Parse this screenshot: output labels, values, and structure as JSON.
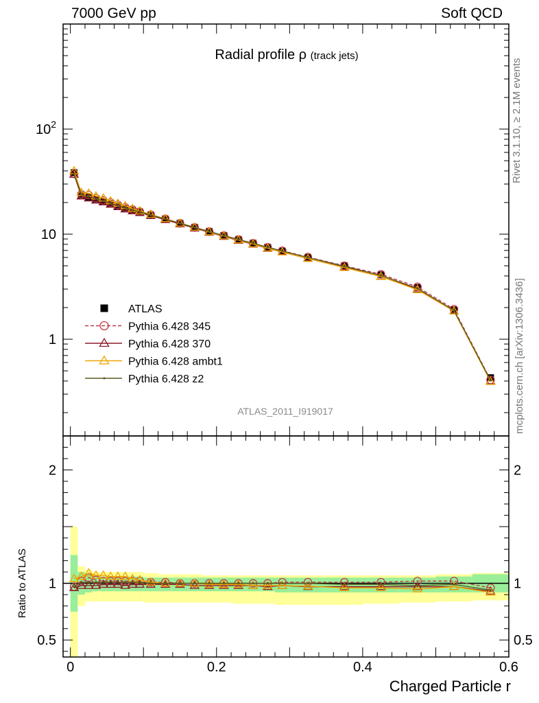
{
  "header": {
    "left": "7000 GeV pp",
    "right": "Soft QCD"
  },
  "side_labels": {
    "rivet": "Rivet 3.1.10, ≥ 2.1M events",
    "mcplots": "mcplots.cern.ch [arXiv:1306.3436]"
  },
  "chart_data": [
    {
      "type": "line",
      "title": "Radial profile ρ",
      "title_suffix": "(track jets)",
      "watermark": "ATLAS_2011_I919017",
      "xlabel": "Charged Particle r",
      "ylabel": "",
      "yscale": "log",
      "xlim": [
        -0.01,
        0.6
      ],
      "ylim": [
        0.12,
        1000
      ],
      "y_ticks": [
        {
          "value": 1,
          "label": "1"
        },
        {
          "value": 10,
          "label": "10"
        },
        {
          "value": 100,
          "label": "10",
          "sup": "2"
        }
      ],
      "x_ticks": [
        {
          "value": 0,
          "label": "0"
        },
        {
          "value": 0.2,
          "label": "0.2"
        },
        {
          "value": 0.4,
          "label": "0.4"
        },
        {
          "value": 0.6,
          "label": "0.6"
        }
      ],
      "x": [
        0.005,
        0.015,
        0.025,
        0.035,
        0.045,
        0.055,
        0.065,
        0.075,
        0.085,
        0.095,
        0.11,
        0.13,
        0.15,
        0.17,
        0.19,
        0.21,
        0.23,
        0.25,
        0.27,
        0.29,
        0.325,
        0.375,
        0.425,
        0.475,
        0.525,
        0.575
      ],
      "series": [
        {
          "name": "ATLAS",
          "color": "#000000",
          "marker": "square",
          "values": [
            38.5,
            23.5,
            22.5,
            21.5,
            20.5,
            19.5,
            18.5,
            17.6,
            16.8,
            16.2,
            15.2,
            13.9,
            12.7,
            11.6,
            10.6,
            9.7,
            8.9,
            8.2,
            7.5,
            6.9,
            6.0,
            5.0,
            4.1,
            3.1,
            1.9,
            0.43
          ]
        },
        {
          "name": "Pythia 6.428 345",
          "color": "#c0394b",
          "marker": "open-circle",
          "dash": true,
          "values": [
            37.5,
            24.0,
            23.5,
            22.0,
            21.0,
            20.0,
            19.0,
            18.0,
            17.2,
            16.4,
            15.3,
            14.0,
            12.7,
            11.6,
            10.6,
            9.7,
            8.9,
            8.2,
            7.5,
            6.95,
            6.05,
            5.0,
            4.15,
            3.15,
            1.93,
            0.41
          ]
        },
        {
          "name": "Pythia 6.428 370",
          "color": "#8b1a2b",
          "marker": "open-triangle",
          "values": [
            37.0,
            23.0,
            22.0,
            21.0,
            20.2,
            19.2,
            18.2,
            17.3,
            16.6,
            16.0,
            15.0,
            13.7,
            12.5,
            11.4,
            10.4,
            9.5,
            8.7,
            8.0,
            7.3,
            6.75,
            5.85,
            4.85,
            3.95,
            3.0,
            1.85,
            0.4
          ]
        },
        {
          "name": "Pythia 6.428 ambt1",
          "color": "#f0a500",
          "marker": "open-triangle",
          "values": [
            40.0,
            24.8,
            24.5,
            23.0,
            22.0,
            20.7,
            19.6,
            18.6,
            17.5,
            16.6,
            15.4,
            14.0,
            12.7,
            11.6,
            10.5,
            9.6,
            8.8,
            8.05,
            7.35,
            6.75,
            5.85,
            4.8,
            3.95,
            2.95,
            1.85,
            0.395
          ]
        },
        {
          "name": "Pythia 6.428 z2",
          "color": "#5a5a1e",
          "marker": "dot",
          "values": [
            37.5,
            23.8,
            22.8,
            21.7,
            20.7,
            19.7,
            18.7,
            17.8,
            17.0,
            16.3,
            15.2,
            13.9,
            12.7,
            11.6,
            10.6,
            9.7,
            8.9,
            8.2,
            7.5,
            6.9,
            6.0,
            4.95,
            4.05,
            3.05,
            1.88,
            0.405
          ]
        }
      ]
    },
    {
      "type": "line",
      "title": "",
      "xlabel": "Charged Particle r",
      "ylabel": "Ratio to ATLAS",
      "xlim": [
        -0.01,
        0.6
      ],
      "ylim": [
        0.35,
        2.3
      ],
      "y_ticks": [
        {
          "value": 0.5,
          "label": "0.5"
        },
        {
          "value": 1,
          "label": "1"
        },
        {
          "value": 2,
          "label": "2"
        }
      ],
      "x_ticks": [
        {
          "value": 0,
          "label": "0"
        },
        {
          "value": 0.2,
          "label": "0.2"
        },
        {
          "value": 0.4,
          "label": "0.4"
        },
        {
          "value": 0.6,
          "label": "0.6"
        }
      ],
      "reference": 1.0,
      "bins": [
        [
          0.0,
          0.01
        ],
        [
          0.01,
          0.02
        ],
        [
          0.02,
          0.03
        ],
        [
          0.03,
          0.04
        ],
        [
          0.04,
          0.05
        ],
        [
          0.05,
          0.06
        ],
        [
          0.06,
          0.07
        ],
        [
          0.07,
          0.08
        ],
        [
          0.08,
          0.09
        ],
        [
          0.09,
          0.1
        ],
        [
          0.1,
          0.12
        ],
        [
          0.12,
          0.14
        ],
        [
          0.14,
          0.16
        ],
        [
          0.16,
          0.18
        ],
        [
          0.18,
          0.2
        ],
        [
          0.2,
          0.22
        ],
        [
          0.22,
          0.24
        ],
        [
          0.24,
          0.26
        ],
        [
          0.26,
          0.28
        ],
        [
          0.28,
          0.3
        ],
        [
          0.3,
          0.35
        ],
        [
          0.35,
          0.4
        ],
        [
          0.4,
          0.45
        ],
        [
          0.45,
          0.5
        ],
        [
          0.5,
          0.55
        ],
        [
          0.55,
          0.6
        ]
      ],
      "band_stat": [
        [
          0.75,
          1.25
        ],
        [
          0.9,
          1.1
        ],
        [
          0.92,
          1.08
        ],
        [
          0.93,
          1.07
        ],
        [
          0.93,
          1.06
        ],
        [
          0.93,
          1.06
        ],
        [
          0.93,
          1.06
        ],
        [
          0.93,
          1.06
        ],
        [
          0.93,
          1.06
        ],
        [
          0.93,
          1.06
        ],
        [
          0.93,
          1.05
        ],
        [
          0.93,
          1.05
        ],
        [
          0.93,
          1.05
        ],
        [
          0.93,
          1.05
        ],
        [
          0.93,
          1.05
        ],
        [
          0.93,
          1.05
        ],
        [
          0.93,
          1.05
        ],
        [
          0.93,
          1.05
        ],
        [
          0.93,
          1.05
        ],
        [
          0.92,
          1.05
        ],
        [
          0.92,
          1.05
        ],
        [
          0.92,
          1.05
        ],
        [
          0.92,
          1.05
        ],
        [
          0.92,
          1.05
        ],
        [
          0.92,
          1.06
        ],
        [
          0.92,
          1.08
        ]
      ],
      "band_total": [
        [
          0.35,
          1.5
        ],
        [
          0.8,
          1.15
        ],
        [
          0.84,
          1.12
        ],
        [
          0.84,
          1.1
        ],
        [
          0.84,
          1.1
        ],
        [
          0.84,
          1.1
        ],
        [
          0.84,
          1.1
        ],
        [
          0.84,
          1.1
        ],
        [
          0.84,
          1.1
        ],
        [
          0.84,
          1.1
        ],
        [
          0.83,
          1.09
        ],
        [
          0.83,
          1.08
        ],
        [
          0.83,
          1.08
        ],
        [
          0.83,
          1.08
        ],
        [
          0.83,
          1.07
        ],
        [
          0.83,
          1.07
        ],
        [
          0.82,
          1.07
        ],
        [
          0.82,
          1.07
        ],
        [
          0.82,
          1.07
        ],
        [
          0.81,
          1.07
        ],
        [
          0.81,
          1.07
        ],
        [
          0.81,
          1.07
        ],
        [
          0.82,
          1.07
        ],
        [
          0.83,
          1.07
        ],
        [
          0.84,
          1.08
        ],
        [
          0.85,
          1.09
        ]
      ],
      "x": [
        0.005,
        0.015,
        0.025,
        0.035,
        0.045,
        0.055,
        0.065,
        0.075,
        0.085,
        0.095,
        0.11,
        0.13,
        0.15,
        0.17,
        0.19,
        0.21,
        0.23,
        0.25,
        0.27,
        0.29,
        0.325,
        0.375,
        0.425,
        0.475,
        0.525,
        0.575
      ],
      "series": [
        {
          "name": "Pythia 6.428 345",
          "color": "#c0394b",
          "marker": "open-circle",
          "dash": true,
          "values": [
            0.97,
            1.02,
            1.05,
            1.03,
            1.02,
            1.02,
            1.02,
            1.02,
            1.02,
            1.02,
            1.01,
            1.01,
            1.0,
            1.0,
            1.0,
            1.0,
            1.0,
            1.0,
            1.0,
            1.01,
            1.01,
            1.01,
            1.01,
            1.02,
            1.02,
            0.96
          ]
        },
        {
          "name": "Pythia 6.428 370",
          "color": "#8b1a2b",
          "marker": "open-triangle",
          "values": [
            0.96,
            0.98,
            0.98,
            0.98,
            0.99,
            0.99,
            0.99,
            0.98,
            0.99,
            0.99,
            0.99,
            0.99,
            0.99,
            0.98,
            0.98,
            0.98,
            0.98,
            0.98,
            0.97,
            0.98,
            0.97,
            0.97,
            0.97,
            0.97,
            0.97,
            0.93
          ]
        },
        {
          "name": "Pythia 6.428 ambt1",
          "color": "#f0a500",
          "marker": "open-triangle",
          "values": [
            1.04,
            1.06,
            1.09,
            1.07,
            1.07,
            1.06,
            1.06,
            1.06,
            1.04,
            1.03,
            1.01,
            1.0,
            1.0,
            1.0,
            0.99,
            0.99,
            0.99,
            0.98,
            0.98,
            0.98,
            0.975,
            0.96,
            0.96,
            0.95,
            0.97,
            0.92
          ]
        },
        {
          "name": "Pythia 6.428 z2",
          "color": "#5a5a1e",
          "marker": "dot",
          "values": [
            0.97,
            1.01,
            1.01,
            1.01,
            1.01,
            1.01,
            1.01,
            1.01,
            1.01,
            1.01,
            1.0,
            1.0,
            1.0,
            1.0,
            1.0,
            1.0,
            1.0,
            1.0,
            1.0,
            1.0,
            1.0,
            0.99,
            0.99,
            0.98,
            0.99,
            0.94
          ]
        }
      ]
    }
  ]
}
